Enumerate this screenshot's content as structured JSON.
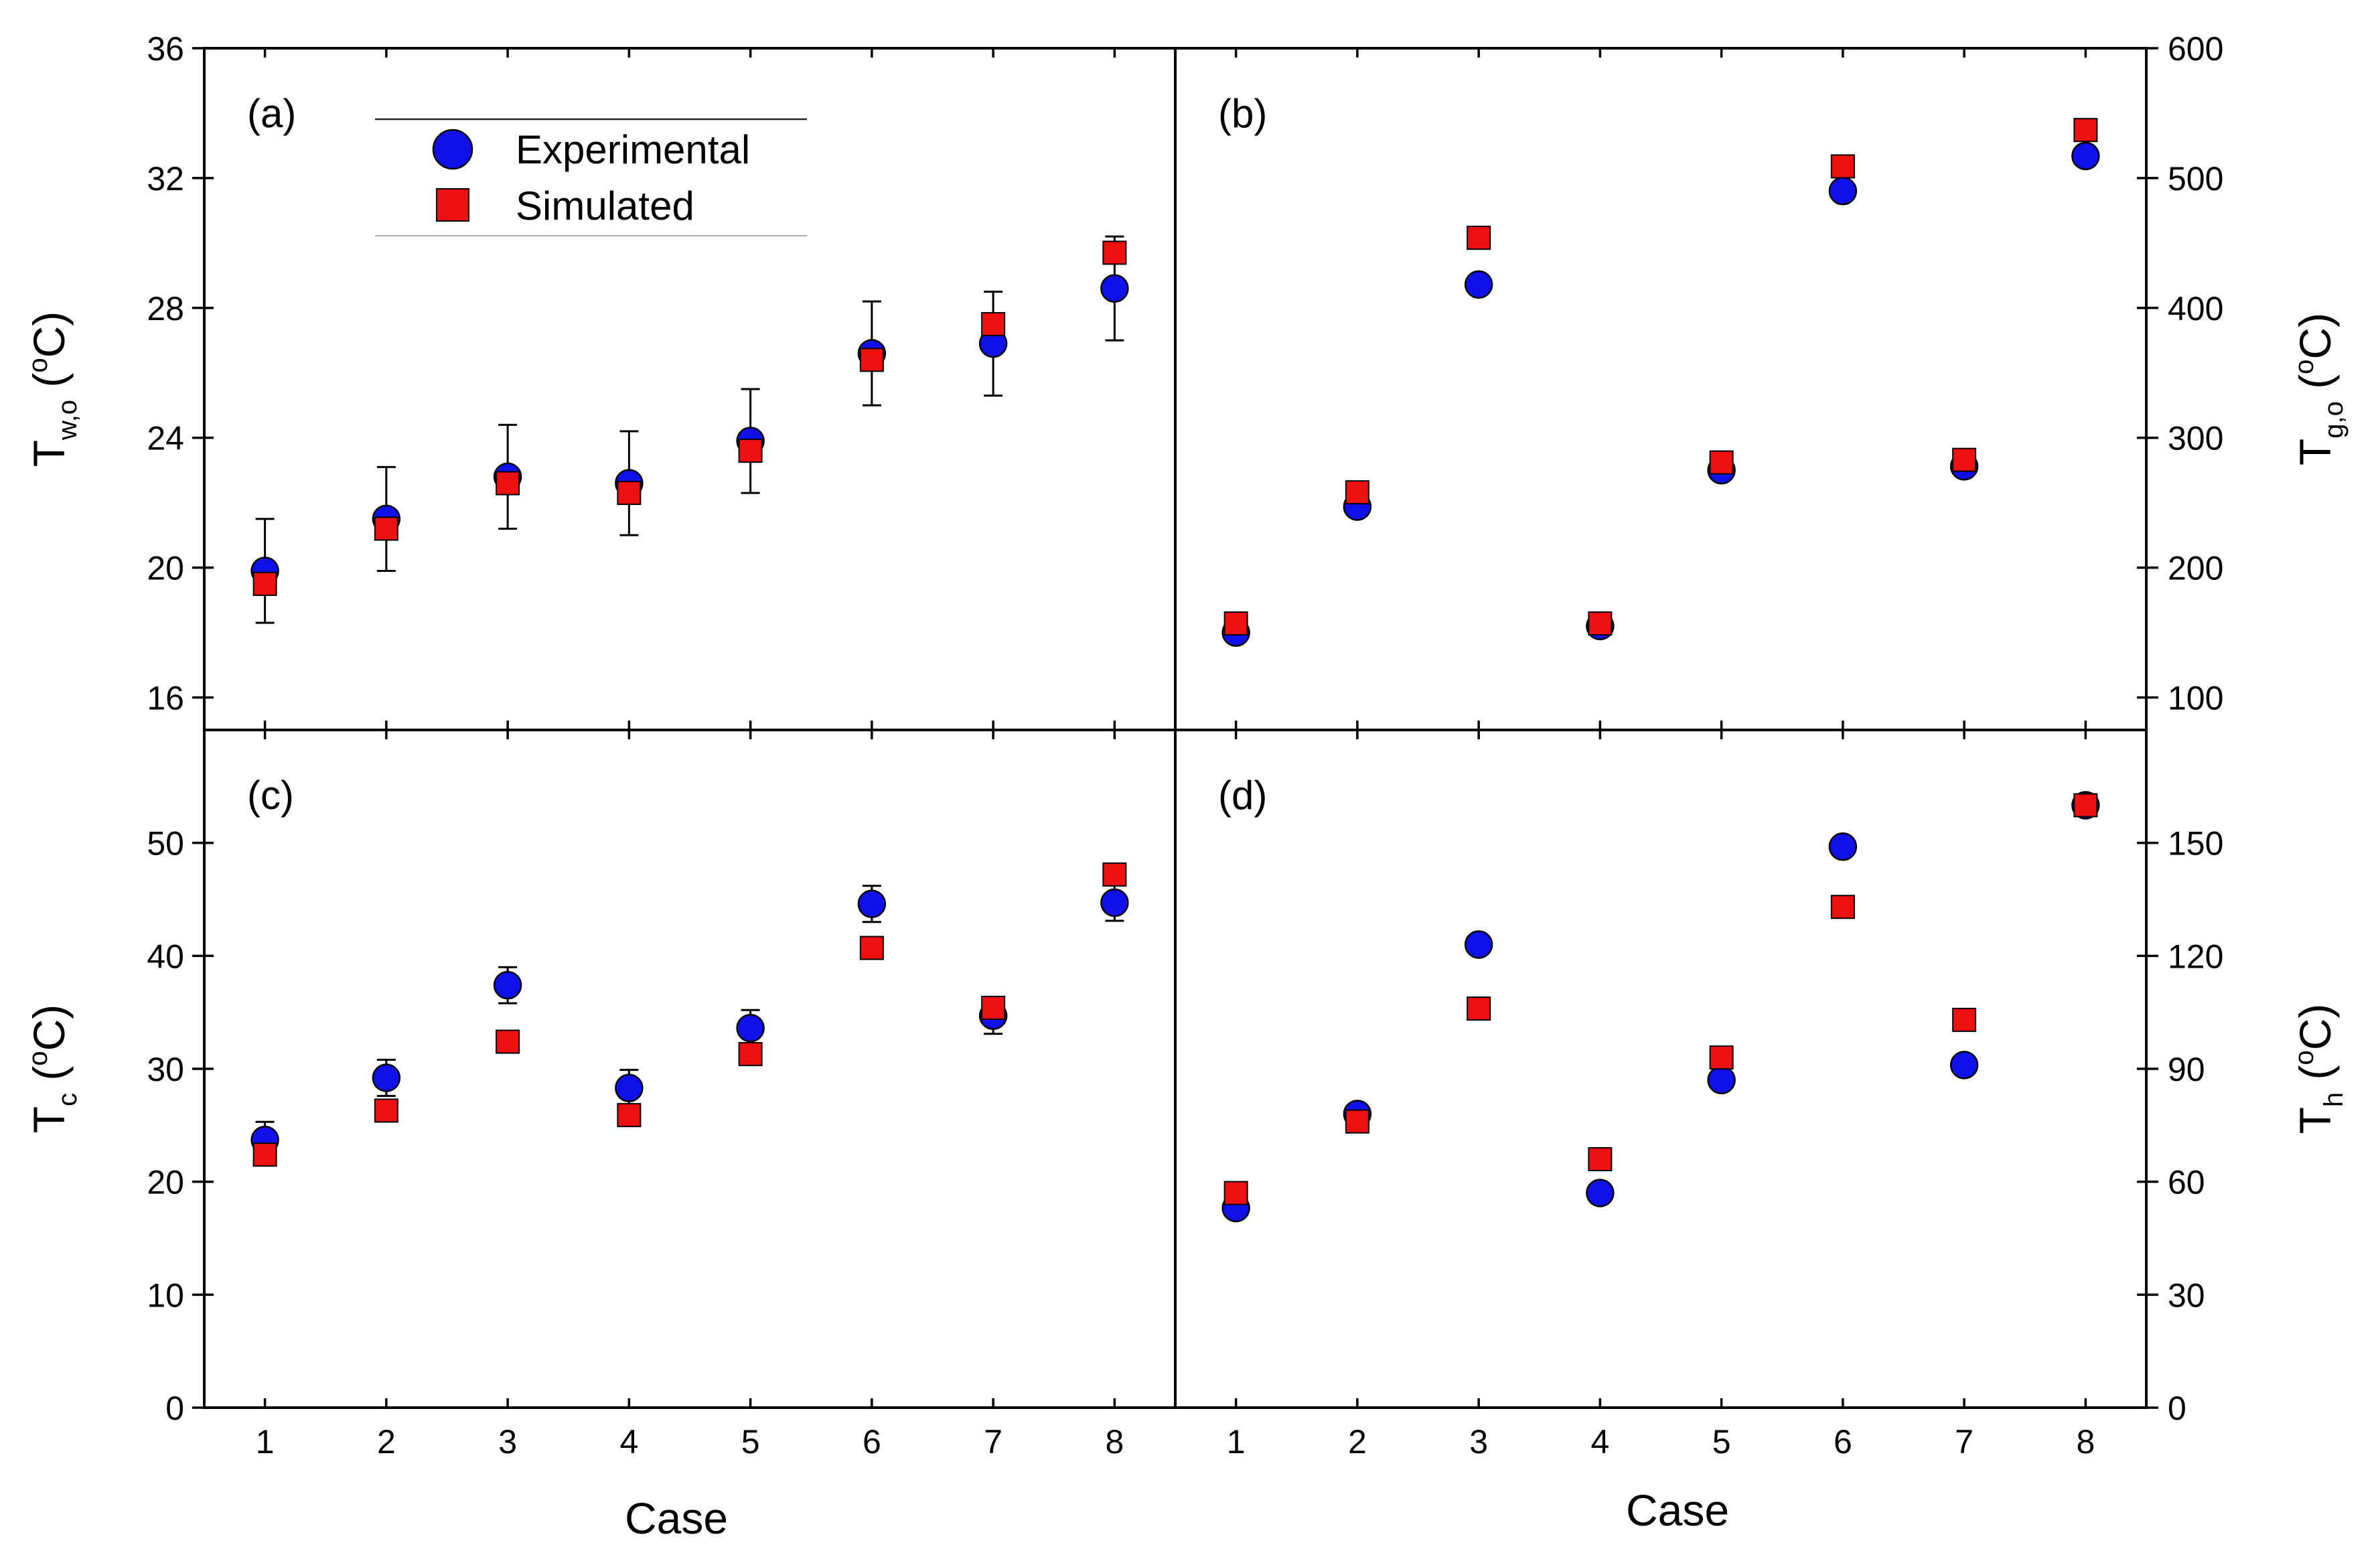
{
  "figure": {
    "x_title": "Case",
    "legend": {
      "experimental_label": "Experimental",
      "simulated_label": "Simulated",
      "placement": "upper-left of panel (a)"
    },
    "colors": {
      "experimental": "#1010e8",
      "simulated": "#ee1111"
    }
  },
  "chart_data": [
    {
      "id": "a",
      "type": "scatter",
      "panel_label": "(a)",
      "y_axis_side": "left",
      "ylabel": {
        "main": "T",
        "sub": "w,o",
        "sup": "o",
        "unit": "C"
      },
      "x": [
        1,
        2,
        3,
        4,
        5,
        6,
        7,
        8
      ],
      "xlim": [
        0.5,
        8.5
      ],
      "ylim": [
        15,
        36
      ],
      "yticks": [
        16,
        20,
        24,
        28,
        32,
        36
      ],
      "xtick_labels_shown": false,
      "series": [
        {
          "name": "Experimental",
          "marker": "circle",
          "values": [
            19.9,
            21.5,
            22.8,
            22.6,
            23.9,
            26.6,
            26.9,
            28.6
          ],
          "error": [
            1.6,
            1.6,
            1.6,
            1.6,
            1.6,
            1.6,
            1.6,
            1.6
          ]
        },
        {
          "name": "Simulated",
          "marker": "square",
          "values": [
            19.5,
            21.2,
            22.6,
            22.3,
            23.6,
            26.4,
            27.5,
            29.7
          ]
        }
      ]
    },
    {
      "id": "b",
      "type": "scatter",
      "panel_label": "(b)",
      "y_axis_side": "right",
      "ylabel": {
        "main": "T",
        "sub": "g,o",
        "sup": "o",
        "unit": "C"
      },
      "x": [
        1,
        2,
        3,
        4,
        5,
        6,
        7,
        8
      ],
      "xlim": [
        0.5,
        8.5
      ],
      "ylim": [
        75,
        600
      ],
      "yticks": [
        100,
        200,
        300,
        400,
        500,
        600
      ],
      "xtick_labels_shown": false,
      "series": [
        {
          "name": "Experimental",
          "marker": "circle",
          "values": [
            150,
            247,
            418,
            155,
            275,
            490,
            278,
            517
          ]
        },
        {
          "name": "Simulated",
          "marker": "square",
          "values": [
            157,
            258,
            454,
            157,
            281,
            509,
            283,
            537
          ]
        }
      ]
    },
    {
      "id": "c",
      "type": "scatter",
      "panel_label": "(c)",
      "y_axis_side": "left",
      "ylabel": {
        "main": "T",
        "sub": "c",
        "sup": "o",
        "unit": "C"
      },
      "x": [
        1,
        2,
        3,
        4,
        5,
        6,
        7,
        8
      ],
      "xlim": [
        0.5,
        8.5
      ],
      "ylim": [
        0,
        60
      ],
      "yticks": [
        0,
        10,
        20,
        30,
        40,
        50
      ],
      "xtick_labels": [
        "1",
        "2",
        "3",
        "4",
        "5",
        "6",
        "7",
        "8"
      ],
      "series": [
        {
          "name": "Experimental",
          "marker": "circle",
          "values": [
            23.7,
            29.2,
            37.4,
            28.3,
            33.6,
            44.6,
            34.7,
            44.7
          ],
          "error": [
            1.6,
            1.6,
            1.6,
            1.6,
            1.6,
            1.6,
            1.6,
            1.6
          ]
        },
        {
          "name": "Simulated",
          "marker": "square",
          "values": [
            22.4,
            26.3,
            32.4,
            25.9,
            31.3,
            40.7,
            35.4,
            47.2
          ]
        }
      ]
    },
    {
      "id": "d",
      "type": "scatter",
      "panel_label": "(d)",
      "y_axis_side": "right",
      "ylabel": {
        "main": "T",
        "sub": "h",
        "sup": "o",
        "unit": "C"
      },
      "x": [
        1,
        2,
        3,
        4,
        5,
        6,
        7,
        8
      ],
      "xlim": [
        0.5,
        8.5
      ],
      "ylim": [
        0,
        180
      ],
      "yticks": [
        0,
        30,
        60,
        90,
        120,
        150
      ],
      "xtick_labels": [
        "1",
        "2",
        "3",
        "4",
        "5",
        "6",
        "7",
        "8"
      ],
      "series": [
        {
          "name": "Experimental",
          "marker": "circle",
          "values": [
            53,
            78,
            123,
            57,
            87,
            149,
            91,
            160
          ]
        },
        {
          "name": "Simulated",
          "marker": "square",
          "values": [
            57,
            76,
            106,
            66,
            93,
            133,
            103,
            160
          ]
        }
      ]
    }
  ]
}
